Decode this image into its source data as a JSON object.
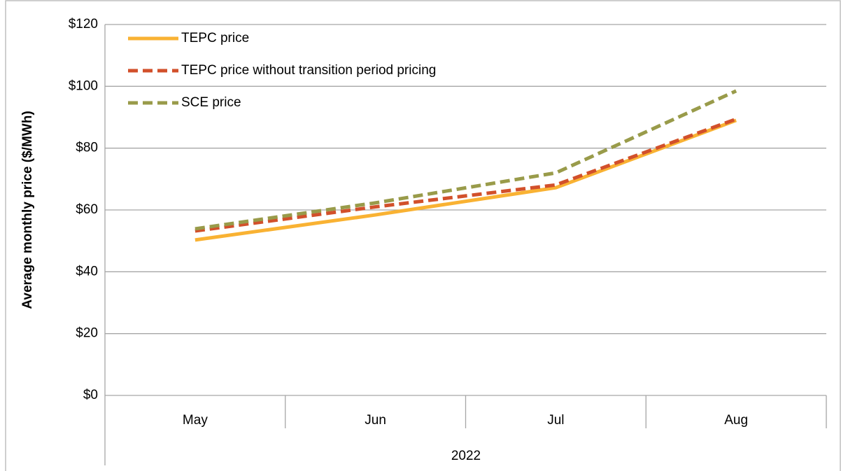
{
  "chart_data": {
    "type": "line",
    "y_axis_label": "Average monthly price ($/MWh)",
    "x_group_label": "2022",
    "categories": [
      "May",
      "Jun",
      "Jul",
      "Aug"
    ],
    "series": [
      {
        "name": "TEPC price",
        "color": "#f9b233",
        "dash": "solid",
        "values": [
          50.3,
          58.4,
          67.2,
          89
        ]
      },
      {
        "name": "TEPC price without transition period pricing",
        "color": "#d2502b",
        "dash": "dashed",
        "values": [
          53.2,
          61,
          68.1,
          89.4
        ]
      },
      {
        "name": "SCE price",
        "color": "#999b4a",
        "dash": "dashed",
        "values": [
          53.9,
          62.3,
          72,
          98.5
        ]
      }
    ],
    "ylim": [
      0,
      120
    ],
    "yticks": [
      {
        "value": 0,
        "label": "$0"
      },
      {
        "value": 20,
        "label": "$20"
      },
      {
        "value": 40,
        "label": "$40"
      },
      {
        "value": 60,
        "label": "$60"
      },
      {
        "value": 80,
        "label": "$80"
      },
      {
        "value": 100,
        "label": "$100"
      },
      {
        "value": 120,
        "label": "$120"
      }
    ],
    "grid": true,
    "legend": "top-left"
  }
}
